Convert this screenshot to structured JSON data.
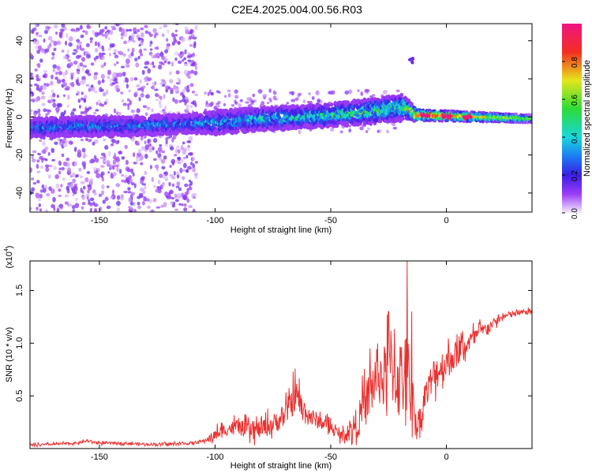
{
  "figure": {
    "title": "C2E4.2025.004.00.56.R03"
  },
  "chart_data": [
    {
      "type": "heatmap",
      "panel": "top",
      "xlabel": "Height of straight line (km)",
      "ylabel": "Frequency (Hz)",
      "xlim": [
        -180,
        37
      ],
      "ylim": [
        -50,
        49
      ],
      "xticks": [
        -150,
        -100,
        -50,
        0
      ],
      "yticks": [
        -40,
        -20,
        0,
        20,
        40
      ],
      "colorbar": {
        "label": "Normalized spectral amplitude",
        "range": [
          0,
          1
        ],
        "ticks": [
          "0.0",
          "0.2",
          "0.4",
          "0.6",
          "0.8"
        ],
        "colormap": "rainbow (white/lavender → violet → blue → cyan → green → yellow → red → magenta)"
      },
      "features": {
        "main_band": {
          "description": "dominant spectral band near 0 Hz that drifts upward with height",
          "center_frequency_hz": [
            [
              -180,
              -6
            ],
            [
              -160,
              -5
            ],
            [
              -140,
              -5
            ],
            [
              -120,
              -4
            ],
            [
              -100,
              -3
            ],
            [
              -80,
              -1
            ],
            [
              -60,
              0
            ],
            [
              -40,
              2
            ],
            [
              -25,
              4
            ],
            [
              -18,
              5
            ],
            [
              -13,
              1
            ],
            [
              0,
              0.5
            ],
            [
              37,
              -1
            ]
          ],
          "width_hz": [
            [
              -180,
              10
            ],
            [
              -110,
              10
            ],
            [
              -100,
              12
            ],
            [
              -50,
              12
            ],
            [
              -20,
              14
            ],
            [
              -13,
              6
            ],
            [
              37,
              4
            ]
          ],
          "peak_amplitude": [
            [
              -180,
              0.3
            ],
            [
              -110,
              0.3
            ],
            [
              -100,
              0.35
            ],
            [
              -50,
              0.45
            ],
            [
              -20,
              0.5
            ],
            [
              -12,
              0.95
            ],
            [
              37,
              0.6
            ]
          ]
        },
        "secondary_feature": {
          "height_km": -15,
          "frequency_hz": 30,
          "amplitude": 0.15
        },
        "scatter_noise_region_km": [
          -180,
          -108
        ]
      }
    },
    {
      "type": "line",
      "panel": "bottom",
      "xlabel": "Height of straight line (km)",
      "ylabel": "SNR (10 * v/v)",
      "y_multiplier": "(x10^4)",
      "xlim": [
        -180,
        37
      ],
      "ylim": [
        0,
        1.78
      ],
      "xticks": [
        -150,
        -100,
        -50,
        0
      ],
      "yticks": [
        0.5,
        1.0,
        1.5
      ],
      "ytick_labels": [
        "0.5",
        "1.0",
        "1.5"
      ],
      "series": [
        {
          "color": "#e8312f",
          "units": "x10^4",
          "points": [
            [
              -180,
              0.03
            ],
            [
              -170,
              0.04
            ],
            [
              -160,
              0.05
            ],
            [
              -155,
              0.07
            ],
            [
              -150,
              0.05
            ],
            [
              -140,
              0.05
            ],
            [
              -130,
              0.04
            ],
            [
              -120,
              0.04
            ],
            [
              -110,
              0.05
            ],
            [
              -105,
              0.07
            ],
            [
              -100,
              0.12
            ],
            [
              -95,
              0.18
            ],
            [
              -90,
              0.2
            ],
            [
              -85,
              0.15
            ],
            [
              -80,
              0.18
            ],
            [
              -75,
              0.22
            ],
            [
              -70,
              0.3
            ],
            [
              -67,
              0.42
            ],
            [
              -65,
              0.5
            ],
            [
              -62,
              0.35
            ],
            [
              -58,
              0.28
            ],
            [
              -55,
              0.25
            ],
            [
              -50,
              0.2
            ],
            [
              -46,
              0.12
            ],
            [
              -42,
              0.15
            ],
            [
              -38,
              0.25
            ],
            [
              -35,
              0.4
            ],
            [
              -32,
              0.55
            ],
            [
              -30,
              0.7
            ],
            [
              -27,
              0.62
            ],
            [
              -24,
              0.78
            ],
            [
              -20,
              0.6
            ],
            [
              -17,
              0.72
            ],
            [
              -15,
              0.45
            ],
            [
              -13,
              0.2
            ],
            [
              -11,
              0.32
            ],
            [
              -8,
              0.55
            ],
            [
              -5,
              0.7
            ],
            [
              0,
              0.8
            ],
            [
              5,
              0.9
            ],
            [
              10,
              1.0
            ],
            [
              15,
              1.1
            ],
            [
              20,
              1.18
            ],
            [
              25,
              1.25
            ],
            [
              30,
              1.28
            ],
            [
              37,
              1.3
            ]
          ],
          "noise_amplitude": [
            [
              -180,
              0.015
            ],
            [
              -105,
              0.02
            ],
            [
              -100,
              0.08
            ],
            [
              -70,
              0.15
            ],
            [
              -66,
              0.22
            ],
            [
              -55,
              0.1
            ],
            [
              -45,
              0.06
            ],
            [
              -35,
              0.3
            ],
            [
              -20,
              0.6
            ],
            [
              -15,
              0.45
            ],
            [
              -13,
              0.15
            ],
            [
              -5,
              0.25
            ],
            [
              5,
              0.18
            ],
            [
              20,
              0.06
            ],
            [
              37,
              0.03
            ]
          ],
          "peaks": [
            [
              -33,
              0.95
            ],
            [
              -25,
              1.3
            ],
            [
              -17,
              1.78
            ],
            [
              -15,
              1.3
            ],
            [
              -11,
              0.2
            ],
            [
              -9,
              0.6
            ]
          ]
        }
      ]
    }
  ]
}
